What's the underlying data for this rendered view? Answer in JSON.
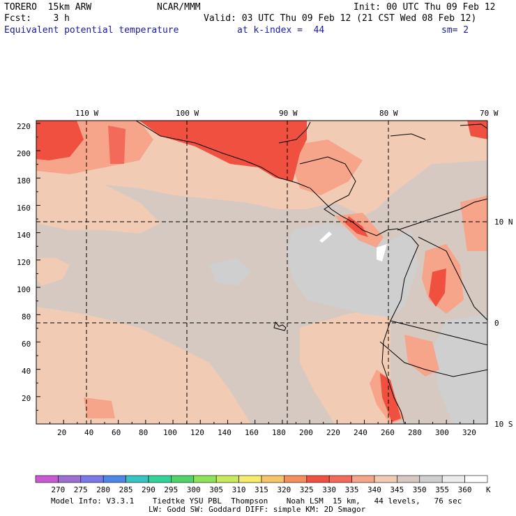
{
  "header": {
    "model": "TORERO  15km ARW",
    "center": "NCAR/MMM",
    "init": "Init: 00 UTC Thu 09 Feb 12",
    "fcst": "Fcst:    3 h",
    "valid": "Valid: 03 UTC Thu 09 Feb 12 (21 CST Wed 08 Feb 12)",
    "field": "Equivalent potential temperature",
    "level": "at k-index =  44",
    "smooth": "sm= 2"
  },
  "map": {
    "top_lon_labels": [
      "110 W",
      "100 W",
      "90 W",
      "80 W",
      "70 W"
    ],
    "right_lat_labels": [
      "10 N",
      "0",
      "10 S"
    ],
    "y_grid_labels": [
      "220",
      "200",
      "180",
      "160",
      "140",
      "120",
      "100",
      "80",
      "60",
      "40",
      "20"
    ],
    "x_grid_labels": [
      "20",
      "40",
      "60",
      "80",
      "100",
      "120",
      "140",
      "160",
      "180",
      "200",
      "220",
      "240",
      "260",
      "280",
      "300",
      "320"
    ]
  },
  "colorbar": {
    "labels": [
      "270",
      "275",
      "280",
      "285",
      "290",
      "295",
      "300",
      "305",
      "310",
      "315",
      "320",
      "325",
      "330",
      "335",
      "340",
      "345",
      "350",
      "355",
      "360"
    ],
    "unit": "K",
    "colors": [
      "#c95ad1",
      "#9c6fd0",
      "#7b79e6",
      "#4d86e6",
      "#35c3c3",
      "#33d49a",
      "#4fd46b",
      "#8ee35a",
      "#c9ea5c",
      "#f7ec6b",
      "#f7c46a",
      "#f58f5c",
      "#f0503f",
      "#f36a5a",
      "#f7a58a",
      "#f2cbb5",
      "#d5c9c2",
      "#cfcfcf",
      "#ececec",
      "#ffffff"
    ]
  },
  "footer": {
    "line1": "Model Info: V3.3.1    Tiedtke YSU PBL  Thompson    Noah LSM  15 km,   44 levels,   76 sec",
    "line2": "LW: Godd SW: Goddard DIFF: simple KM: 2D Smagor"
  }
}
